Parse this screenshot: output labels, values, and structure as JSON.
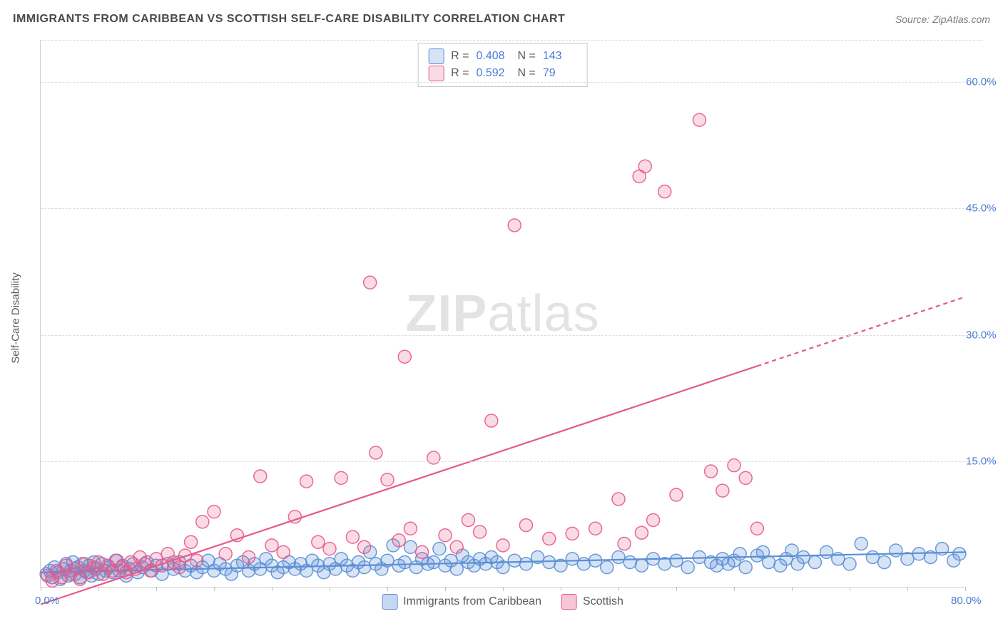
{
  "title": "IMMIGRANTS FROM CARIBBEAN VS SCOTTISH SELF-CARE DISABILITY CORRELATION CHART",
  "source_label": "Source: ZipAtlas.com",
  "y_axis_label": "Self-Care Disability",
  "watermark": {
    "bold": "ZIP",
    "light": "atlas"
  },
  "chart": {
    "type": "scatter",
    "background_color": "#ffffff",
    "xlim": [
      0,
      80
    ],
    "ylim": [
      0,
      65
    ],
    "x_ticks_visible": [
      0,
      80
    ],
    "x_tick_labels": [
      "0.0%",
      "80.0%"
    ],
    "x_minor_tick_step": 5,
    "y_ticks": [
      15,
      30,
      45,
      60
    ],
    "y_tick_labels": [
      "15.0%",
      "30.0%",
      "45.0%",
      "60.0%"
    ],
    "grid_color": "#dcdcdc",
    "axis_color": "#d0d0d0",
    "tick_label_color": "#4a7bd4",
    "label_color": "#5a5a5a",
    "marker_radius": 9,
    "marker_fill_opacity": 0.25,
    "marker_stroke_opacity": 0.9,
    "marker_stroke_width": 1.5,
    "trend_line_width": 2.2,
    "trend_dash_pattern": "6,5"
  },
  "series": [
    {
      "key": "caribbean",
      "label": "Immigrants from Caribbean",
      "color": "#5b8fd6",
      "fill": "rgba(91,143,214,0.25)",
      "R": "0.408",
      "N": "143",
      "trend": {
        "x1": 0,
        "y1": 1.8,
        "x2": 80,
        "y2": 4.2,
        "x_solid_max": 80
      },
      "points": [
        [
          0.5,
          1.6
        ],
        [
          0.8,
          2.0
        ],
        [
          1.0,
          1.2
        ],
        [
          1.2,
          2.4
        ],
        [
          1.5,
          1.8
        ],
        [
          1.7,
          1.0
        ],
        [
          2.0,
          2.2
        ],
        [
          2.2,
          2.8
        ],
        [
          2.4,
          1.4
        ],
        [
          2.6,
          2.0
        ],
        [
          2.8,
          3.0
        ],
        [
          3.0,
          1.6
        ],
        [
          3.2,
          2.4
        ],
        [
          3.4,
          1.2
        ],
        [
          3.6,
          2.8
        ],
        [
          3.8,
          2.0
        ],
        [
          4.0,
          1.8
        ],
        [
          4.2,
          2.6
        ],
        [
          4.4,
          1.4
        ],
        [
          4.6,
          3.0
        ],
        [
          4.8,
          2.2
        ],
        [
          5.0,
          1.6
        ],
        [
          5.3,
          2.8
        ],
        [
          5.6,
          2.0
        ],
        [
          5.9,
          2.4
        ],
        [
          6.2,
          1.8
        ],
        [
          6.5,
          3.2
        ],
        [
          6.8,
          2.0
        ],
        [
          7.1,
          2.6
        ],
        [
          7.4,
          1.4
        ],
        [
          7.7,
          2.2
        ],
        [
          8.0,
          2.8
        ],
        [
          8.4,
          1.8
        ],
        [
          8.8,
          2.4
        ],
        [
          9.2,
          3.0
        ],
        [
          9.6,
          2.0
        ],
        [
          10.0,
          2.6
        ],
        [
          10.5,
          1.6
        ],
        [
          11.0,
          2.8
        ],
        [
          11.5,
          2.2
        ],
        [
          12.0,
          3.0
        ],
        [
          12.5,
          2.0
        ],
        [
          13.0,
          2.6
        ],
        [
          13.5,
          1.8
        ],
        [
          14.0,
          2.4
        ],
        [
          14.5,
          3.2
        ],
        [
          15.0,
          2.0
        ],
        [
          15.5,
          2.8
        ],
        [
          16.0,
          2.2
        ],
        [
          16.5,
          1.6
        ],
        [
          17.0,
          2.6
        ],
        [
          17.5,
          3.0
        ],
        [
          18.0,
          2.0
        ],
        [
          18.5,
          2.8
        ],
        [
          19.0,
          2.2
        ],
        [
          19.5,
          3.4
        ],
        [
          20.0,
          2.6
        ],
        [
          20.5,
          1.8
        ],
        [
          21.0,
          2.4
        ],
        [
          21.5,
          3.0
        ],
        [
          22.0,
          2.2
        ],
        [
          22.5,
          2.8
        ],
        [
          23.0,
          2.0
        ],
        [
          23.5,
          3.2
        ],
        [
          24.0,
          2.6
        ],
        [
          24.5,
          1.8
        ],
        [
          25.0,
          2.8
        ],
        [
          25.5,
          2.2
        ],
        [
          26.0,
          3.4
        ],
        [
          26.5,
          2.6
        ],
        [
          27.0,
          2.0
        ],
        [
          27.5,
          3.0
        ],
        [
          28.0,
          2.4
        ],
        [
          28.5,
          4.2
        ],
        [
          29.0,
          2.8
        ],
        [
          29.5,
          2.2
        ],
        [
          30.0,
          3.2
        ],
        [
          30.5,
          5.0
        ],
        [
          31.0,
          2.6
        ],
        [
          31.5,
          3.0
        ],
        [
          32.0,
          4.8
        ],
        [
          32.5,
          2.4
        ],
        [
          33.0,
          3.4
        ],
        [
          33.5,
          2.8
        ],
        [
          34.0,
          3.0
        ],
        [
          34.5,
          4.6
        ],
        [
          35.0,
          2.6
        ],
        [
          35.5,
          3.2
        ],
        [
          36.0,
          2.2
        ],
        [
          36.5,
          3.8
        ],
        [
          37.0,
          3.0
        ],
        [
          37.5,
          2.6
        ],
        [
          38.0,
          3.4
        ],
        [
          38.5,
          2.8
        ],
        [
          39.0,
          3.6
        ],
        [
          39.5,
          3.0
        ],
        [
          40.0,
          2.4
        ],
        [
          41.0,
          3.2
        ],
        [
          42.0,
          2.8
        ],
        [
          43.0,
          3.6
        ],
        [
          44.0,
          3.0
        ],
        [
          45.0,
          2.6
        ],
        [
          46.0,
          3.4
        ],
        [
          47.0,
          2.8
        ],
        [
          48.0,
          3.2
        ],
        [
          49.0,
          2.4
        ],
        [
          50.0,
          3.6
        ],
        [
          51.0,
          3.0
        ],
        [
          52.0,
          2.6
        ],
        [
          53.0,
          3.4
        ],
        [
          54.0,
          2.8
        ],
        [
          55.0,
          3.2
        ],
        [
          56.0,
          2.4
        ],
        [
          57.0,
          3.6
        ],
        [
          58.0,
          3.0
        ],
        [
          58.5,
          2.6
        ],
        [
          59.0,
          3.4
        ],
        [
          59.5,
          2.8
        ],
        [
          60.0,
          3.2
        ],
        [
          61.0,
          2.4
        ],
        [
          62.0,
          3.8
        ],
        [
          63.0,
          3.0
        ],
        [
          64.0,
          2.6
        ],
        [
          64.5,
          3.4
        ],
        [
          65.0,
          4.4
        ],
        [
          65.5,
          2.8
        ],
        [
          66.0,
          3.6
        ],
        [
          67.0,
          3.0
        ],
        [
          68.0,
          4.2
        ],
        [
          69.0,
          3.4
        ],
        [
          70.0,
          2.8
        ],
        [
          71.0,
          5.2
        ],
        [
          72.0,
          3.6
        ],
        [
          73.0,
          3.0
        ],
        [
          74.0,
          4.4
        ],
        [
          75.0,
          3.4
        ],
        [
          76.0,
          4.0
        ],
        [
          77.0,
          3.6
        ],
        [
          78.0,
          4.6
        ],
        [
          79.0,
          3.2
        ],
        [
          79.5,
          4.0
        ],
        [
          60.5,
          4.0
        ],
        [
          62.5,
          4.2
        ]
      ]
    },
    {
      "key": "scottish",
      "label": "Scottish",
      "color": "#e65a8a",
      "fill": "rgba(230,90,138,0.22)",
      "R": "0.592",
      "N": "79",
      "trend": {
        "x1": 0,
        "y1": -2.0,
        "x2": 80,
        "y2": 34.5,
        "x_solid_max": 62
      },
      "points": [
        [
          0.6,
          1.4
        ],
        [
          1.0,
          0.8
        ],
        [
          1.4,
          2.0
        ],
        [
          1.8,
          1.2
        ],
        [
          2.2,
          2.6
        ],
        [
          2.6,
          1.6
        ],
        [
          3.0,
          2.2
        ],
        [
          3.4,
          1.0
        ],
        [
          3.8,
          2.8
        ],
        [
          4.2,
          1.8
        ],
        [
          4.6,
          2.4
        ],
        [
          5.0,
          3.0
        ],
        [
          5.4,
          1.6
        ],
        [
          5.8,
          2.6
        ],
        [
          6.2,
          2.0
        ],
        [
          6.6,
          3.2
        ],
        [
          7.0,
          2.4
        ],
        [
          7.4,
          1.8
        ],
        [
          7.8,
          3.0
        ],
        [
          8.2,
          2.2
        ],
        [
          8.6,
          3.6
        ],
        [
          9.0,
          2.8
        ],
        [
          9.5,
          2.0
        ],
        [
          10.0,
          3.4
        ],
        [
          10.5,
          2.6
        ],
        [
          11.0,
          4.0
        ],
        [
          11.5,
          3.0
        ],
        [
          12.0,
          2.4
        ],
        [
          12.5,
          3.8
        ],
        [
          13.0,
          5.4
        ],
        [
          13.5,
          3.2
        ],
        [
          14.0,
          7.8
        ],
        [
          15.0,
          9.0
        ],
        [
          16.0,
          4.0
        ],
        [
          17.0,
          6.2
        ],
        [
          18.0,
          3.6
        ],
        [
          19.0,
          13.2
        ],
        [
          20.0,
          5.0
        ],
        [
          21.0,
          4.2
        ],
        [
          22.0,
          8.4
        ],
        [
          23.0,
          12.6
        ],
        [
          24.0,
          5.4
        ],
        [
          25.0,
          4.6
        ],
        [
          26.0,
          13.0
        ],
        [
          27.0,
          6.0
        ],
        [
          28.0,
          4.8
        ],
        [
          28.5,
          36.2
        ],
        [
          29.0,
          16.0
        ],
        [
          30.0,
          12.8
        ],
        [
          31.0,
          5.6
        ],
        [
          31.5,
          27.4
        ],
        [
          32.0,
          7.0
        ],
        [
          33.0,
          4.2
        ],
        [
          34.0,
          15.4
        ],
        [
          35.0,
          6.2
        ],
        [
          36.0,
          4.8
        ],
        [
          37.0,
          8.0
        ],
        [
          38.0,
          6.6
        ],
        [
          39.0,
          19.8
        ],
        [
          40.0,
          5.0
        ],
        [
          41.0,
          43.0
        ],
        [
          42.0,
          7.4
        ],
        [
          44.0,
          5.8
        ],
        [
          46.0,
          6.4
        ],
        [
          48.0,
          7.0
        ],
        [
          50.0,
          10.5
        ],
        [
          51.8,
          48.8
        ],
        [
          52.3,
          50.0
        ],
        [
          52.0,
          6.5
        ],
        [
          54.0,
          47.0
        ],
        [
          55.0,
          11.0
        ],
        [
          57.0,
          55.5
        ],
        [
          58.0,
          13.8
        ],
        [
          59.0,
          11.5
        ],
        [
          60.0,
          14.5
        ],
        [
          61.0,
          13.0
        ],
        [
          62.0,
          7.0
        ],
        [
          50.5,
          5.2
        ],
        [
          53.0,
          8.0
        ]
      ]
    }
  ],
  "bottom_legend": [
    {
      "label": "Immigrants from Caribbean",
      "color": "#5b8fd6",
      "fill": "rgba(91,143,214,0.35)"
    },
    {
      "label": "Scottish",
      "color": "#e65a8a",
      "fill": "rgba(230,90,138,0.35)"
    }
  ]
}
